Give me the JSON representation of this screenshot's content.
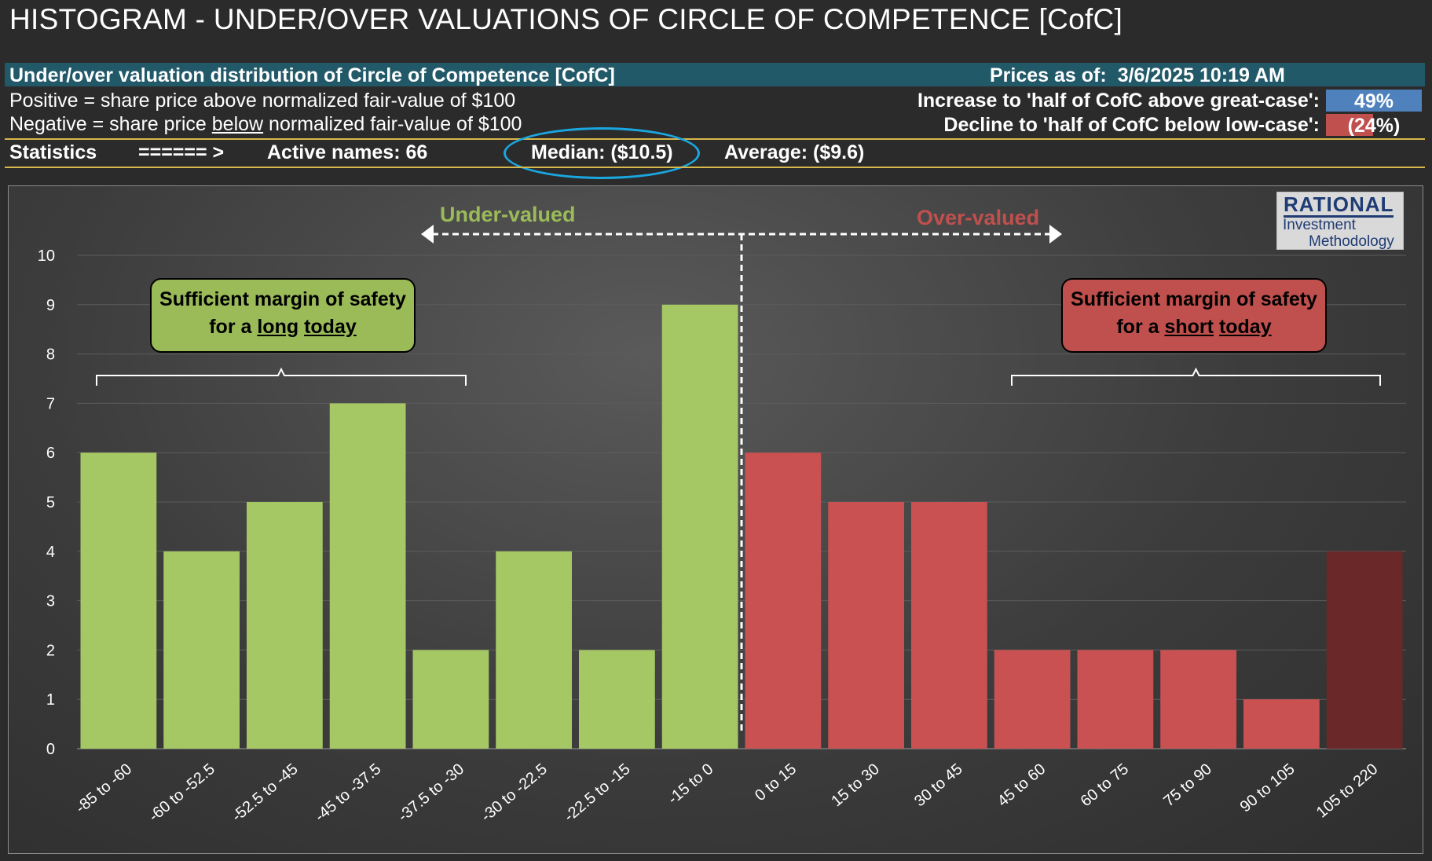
{
  "title": "HISTOGRAM - UNDER/OVER VALUATIONS OF CIRCLE OF COMPETENCE [CofC]",
  "banner": {
    "left": "Under/over valuation distribution of Circle of Competence [CofC]",
    "prices_label": "Prices as of:",
    "prices_value": "3/6/2025 10:19 AM"
  },
  "notes": {
    "positive_prefix": "Positive = share price ",
    "positive_emph": "above",
    "positive_suffix": " normalized fair-value of $100",
    "negative_prefix": "Negative = share price ",
    "negative_emph": "below",
    "negative_suffix": " normalized fair-value of $100"
  },
  "targets": {
    "increase_label": "Increase to 'half of CofC above great-case':",
    "increase_value": "49%",
    "increase_fraction": 0.49,
    "increase_color": "#4f81bd",
    "decline_label": "Decline to 'half of CofC below low-case':",
    "decline_value": "(24%)",
    "decline_fraction": 0.24,
    "decline_color": "#c0504d"
  },
  "stats": {
    "label": "Statistics",
    "arrow": "====== >",
    "active_label": "Active names:",
    "active_value": "66",
    "median_label": "Median:",
    "median_value": "($10.5)",
    "average_label": "Average:",
    "average_value": "($9.6)"
  },
  "chart_labels": {
    "under": "Under-valued",
    "over": "Over-valued",
    "long_line1": "Sufficient margin of safety",
    "long_line2_prefix": "for a ",
    "long_line2_a": "long",
    "long_line2_b": "today",
    "short_line1": "Sufficient margin of safety",
    "short_line2_prefix": "for a ",
    "short_line2_a": "short",
    "short_line2_b": "today"
  },
  "logo": {
    "line1": "RATIONAL",
    "line2": "Investment",
    "line3": "Methodology"
  },
  "colors": {
    "under_bar": "#a6c864",
    "over_bar": "#c95151",
    "extreme_bar": "#6b2828",
    "under_text": "#9bbb59",
    "over_text": "#c0504d",
    "long_box": "#9bbb59",
    "short_box": "#c0504d"
  },
  "chart_data": {
    "type": "bar",
    "categories": [
      "-85 to -60",
      "-60 to -52.5",
      "-52.5 to -45",
      "-45 to -37.5",
      "-37.5 to -30",
      "-30 to -22.5",
      "-22.5 to -15",
      "-15 to 0",
      "0 to 15",
      "15 to 30",
      "30 to 45",
      "45 to 60",
      "60 to 75",
      "75 to 90",
      "90 to 105",
      "105 to 220"
    ],
    "values": [
      6,
      4,
      5,
      7,
      2,
      4,
      2,
      9,
      6,
      5,
      5,
      2,
      2,
      2,
      1,
      4
    ],
    "groups": [
      "under",
      "under",
      "under",
      "under",
      "under",
      "under",
      "under",
      "under",
      "over",
      "over",
      "over",
      "over",
      "over",
      "over",
      "over",
      "extreme"
    ],
    "ylim": [
      0,
      10
    ],
    "yticks": [
      0,
      1,
      2,
      3,
      4,
      5,
      6,
      7,
      8,
      9,
      10
    ],
    "grid": true,
    "legend": "none"
  }
}
